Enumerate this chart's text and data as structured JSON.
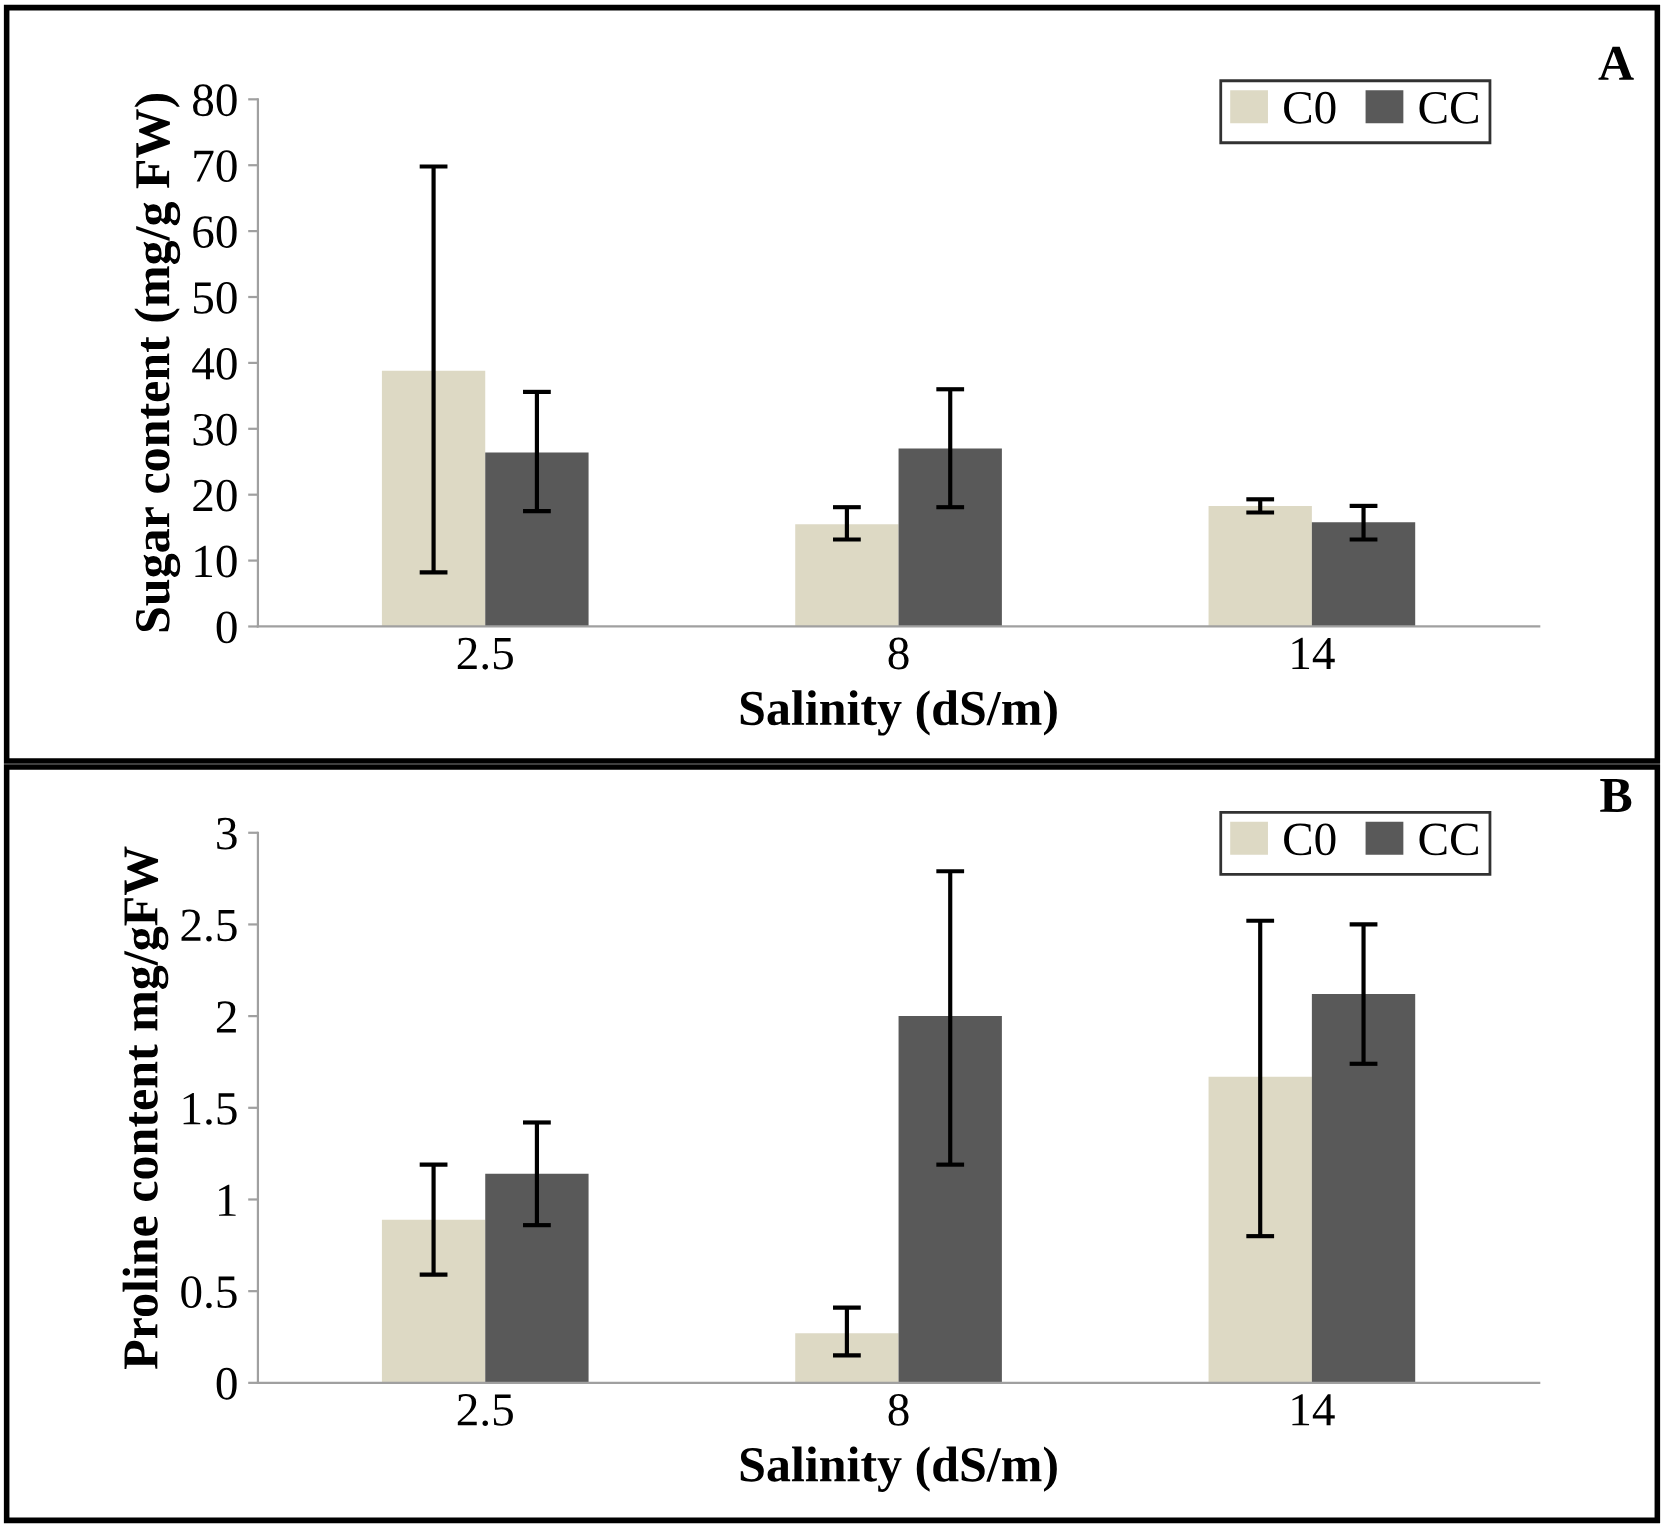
{
  "chart_data": [
    {
      "type": "bar",
      "xlabel": "Salinity (dS/m)",
      "ylabel": "Sugar content (mg/g FW)",
      "annotations": [
        "A"
      ],
      "categories": [
        "2.5",
        "8",
        "14"
      ],
      "ylim": [
        0,
        80
      ],
      "yticks": [
        0,
        10,
        20,
        30,
        40,
        50,
        60,
        70,
        80
      ],
      "grid": false,
      "legend": "top right",
      "series": [
        {
          "name": "C0",
          "color": "#ddd9c4",
          "values": [
            38.8,
            15.5,
            18.3
          ],
          "errors": [
            [
              8.2,
              69.8
            ],
            [
              13.2,
              18.1
            ],
            [
              17.3,
              19.3
            ]
          ]
        },
        {
          "name": "CC",
          "color": "#595959",
          "values": [
            26.4,
            27.0,
            15.8
          ],
          "errors": [
            [
              17.5,
              35.6
            ],
            [
              18.1,
              36.0
            ],
            [
              13.2,
              18.3
            ]
          ]
        }
      ]
    },
    {
      "type": "bar",
      "xlabel": "Salinity (dS/m)",
      "ylabel": "Proline content mg/gFW",
      "annotations": [
        "B"
      ],
      "categories": [
        "2.5",
        "8",
        "14"
      ],
      "ylim": [
        0,
        3
      ],
      "yticks": [
        0,
        0.5,
        1,
        1.5,
        2,
        2.5,
        3
      ],
      "grid": false,
      "legend": "top right",
      "series": [
        {
          "name": "C0",
          "color": "#ddd9c4",
          "values": [
            0.89,
            0.27,
            1.67
          ],
          "errors": [
            [
              0.59,
              1.19
            ],
            [
              0.15,
              0.41
            ],
            [
              0.8,
              2.52
            ]
          ]
        },
        {
          "name": "CC",
          "color": "#595959",
          "values": [
            1.14,
            2.0,
            2.12
          ],
          "errors": [
            [
              0.86,
              1.42
            ],
            [
              1.19,
              2.79
            ],
            [
              1.74,
              2.5
            ]
          ]
        }
      ]
    }
  ]
}
